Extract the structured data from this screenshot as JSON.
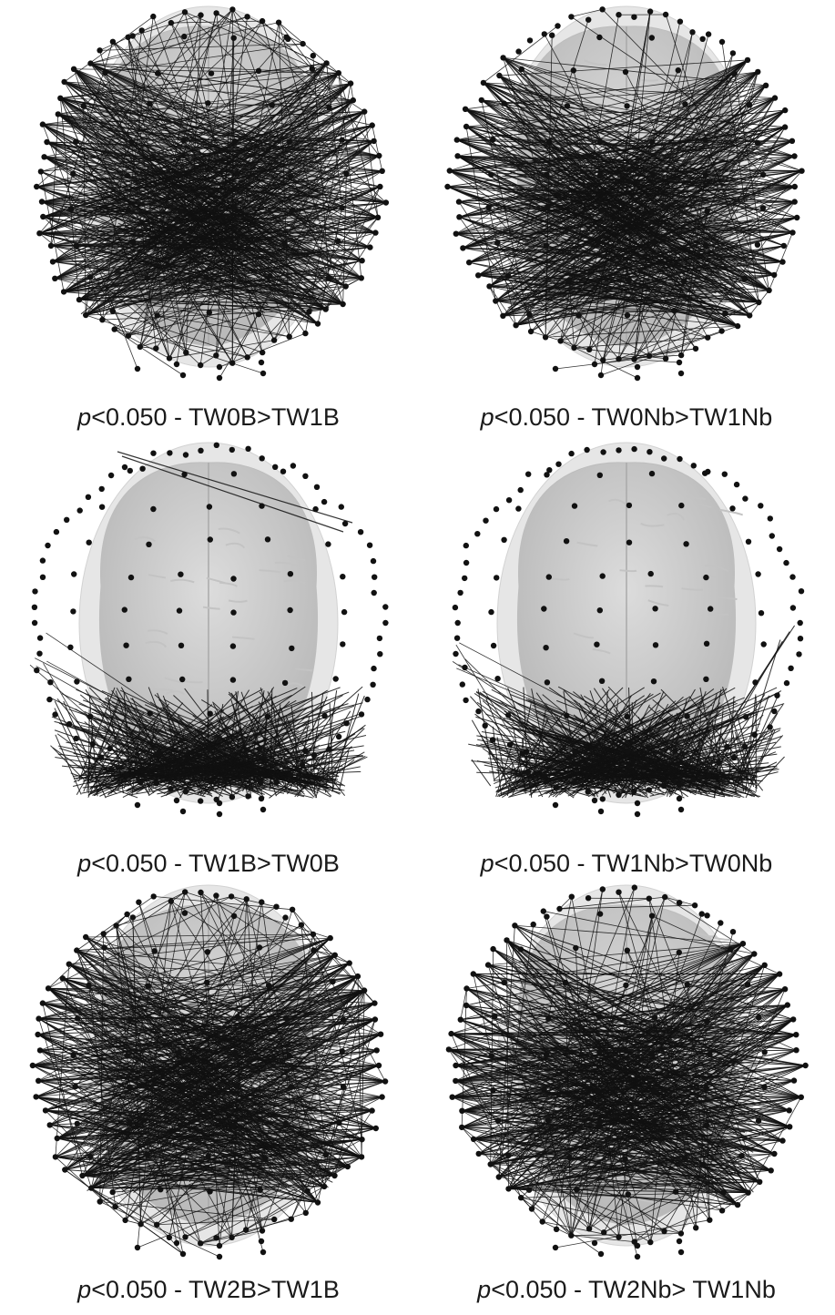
{
  "panels": [
    {
      "id": "tw0b-tw1b",
      "p_symbol": "p",
      "threshold": "<0.050",
      "comparison": " - TW0B>TW1B",
      "pattern": "dense-lateral"
    },
    {
      "id": "tw0nb-tw1nb",
      "p_symbol": "p",
      "threshold": "<0.050",
      "comparison": " - TW0Nb>TW1Nb",
      "pattern": "dense-lateral-sparse-front"
    },
    {
      "id": "tw1b-tw0b",
      "p_symbol": "p",
      "threshold": "<0.050",
      "comparison": " - TW1B>TW0B",
      "pattern": "posterior-cluster"
    },
    {
      "id": "tw1nb-tw0nb",
      "p_symbol": "p",
      "threshold": "<0.050",
      "comparison": " - TW1Nb>TW0Nb",
      "pattern": "posterior-cluster"
    },
    {
      "id": "tw2b-tw1b",
      "p_symbol": "p",
      "threshold": "<0.050",
      "comparison": " - TW2B>TW1B",
      "pattern": "dense-lateral"
    },
    {
      "id": "tw2nb-tw1nb",
      "p_symbol": "p",
      "threshold": "<0.050",
      "comparison": " - TW2Nb> TW1Nb",
      "pattern": "dense-lateral-sparse-front"
    }
  ],
  "colors": {
    "node": "#111111",
    "edge": "#111111",
    "scalp": "#e6e6e6",
    "brain": "#cfcfcf",
    "text": "#1a1a1a"
  }
}
